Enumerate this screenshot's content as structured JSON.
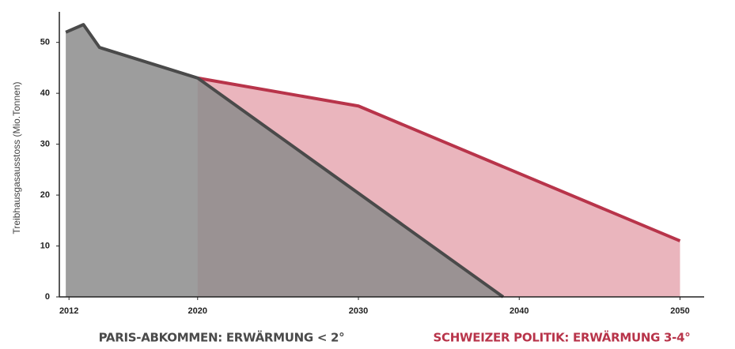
{
  "chart_data": {
    "type": "line",
    "y_label": "Treibhausgasausstoss (Mio.Tonnen)",
    "xlim": [
      2011.4,
      2051.5
    ],
    "xticks": [
      2012,
      2020,
      2030,
      2040,
      2050
    ],
    "ylim": [
      0,
      56
    ],
    "yticks": [
      0,
      10,
      20,
      30,
      40,
      50
    ],
    "grid": false,
    "series": [
      {
        "name": "SCHWEIZER POLITIK: ERWÄRMUNG 3-4°",
        "color": "#b8344a",
        "area_color": "#e6a8b1",
        "x": [
          2020,
          2030,
          2050
        ],
        "values": [
          43,
          37.5,
          11
        ]
      },
      {
        "name": "PARIS-ABKOMMEN: ERWÄRMUNG < 2°",
        "color": "#4a4a4a",
        "area_color": "#8c8c8c",
        "x": [
          2011.8,
          2012.9,
          2013.9,
          2020,
          2039
        ],
        "values": [
          52,
          53.5,
          49,
          43,
          0
        ]
      }
    ]
  }
}
